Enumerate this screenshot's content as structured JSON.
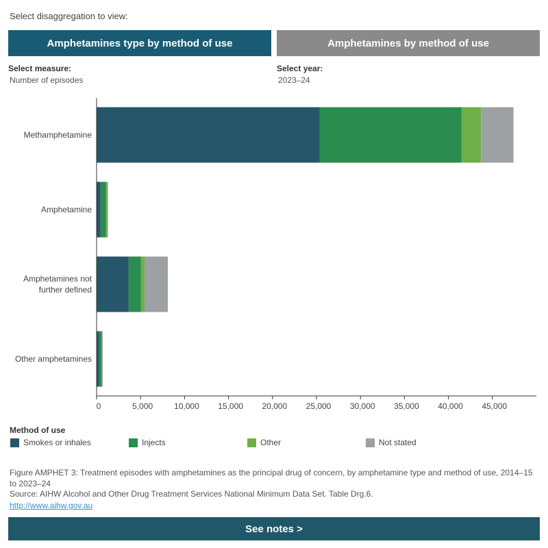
{
  "header": {
    "prompt": "Select disaggregation to view:",
    "tabs": [
      {
        "label": "Amphetamines type by method of use",
        "active": true
      },
      {
        "label": "Amphetamines by method of use",
        "active": false
      }
    ]
  },
  "controls": {
    "measure_label": "Select measure:",
    "measure_value": "Number of episodes",
    "year_label": "Select year:",
    "year_value": "2023–24"
  },
  "chart_data": {
    "type": "bar",
    "orientation": "horizontal",
    "stacked": true,
    "categories": [
      "Methamphetamine",
      "Amphetamine",
      "Amphetamines not further defined",
      "Other amphetamines"
    ],
    "category_lines": [
      [
        "Methamphetamine"
      ],
      [
        "Amphetamine"
      ],
      [
        "Amphetamines not",
        "further defined"
      ],
      [
        "Other amphetamines"
      ]
    ],
    "series": [
      {
        "name": "Smokes or inhales",
        "color": "#25566a",
        "values": [
          25350,
          450,
          3650,
          300
        ]
      },
      {
        "name": "Injects",
        "color": "#2a8c4e",
        "values": [
          16150,
          600,
          1400,
          250
        ]
      },
      {
        "name": "Other",
        "color": "#6faf49",
        "values": [
          2200,
          150,
          400,
          80
        ]
      },
      {
        "name": "Not stated",
        "color": "#9ea1a3",
        "values": [
          3700,
          100,
          2650,
          70
        ]
      }
    ],
    "xlim": [
      0,
      50000
    ],
    "xticks": [
      0,
      5000,
      10000,
      15000,
      20000,
      25000,
      30000,
      35000,
      40000,
      45000
    ],
    "xtick_labels": [
      "0",
      "5,000",
      "10,000",
      "15,000",
      "20,000",
      "25,000",
      "30,000",
      "35,000",
      "40,000",
      "45,000"
    ],
    "grid": false,
    "legend_title": "Method of use",
    "legend_position": "bottom"
  },
  "footer": {
    "caption": "Figure AMPHET 3: Treatment episodes with amphetamines as the principal drug of concern, by amphetamine type and method of use, 2014–15 to 2023–24",
    "source": "Source: AIHW Alcohol and Other Drug Treatment Services National Minimum Data Set. Table Drg.6.",
    "link": "http://www.aihw.gov.au",
    "notes_button": "See notes >"
  }
}
